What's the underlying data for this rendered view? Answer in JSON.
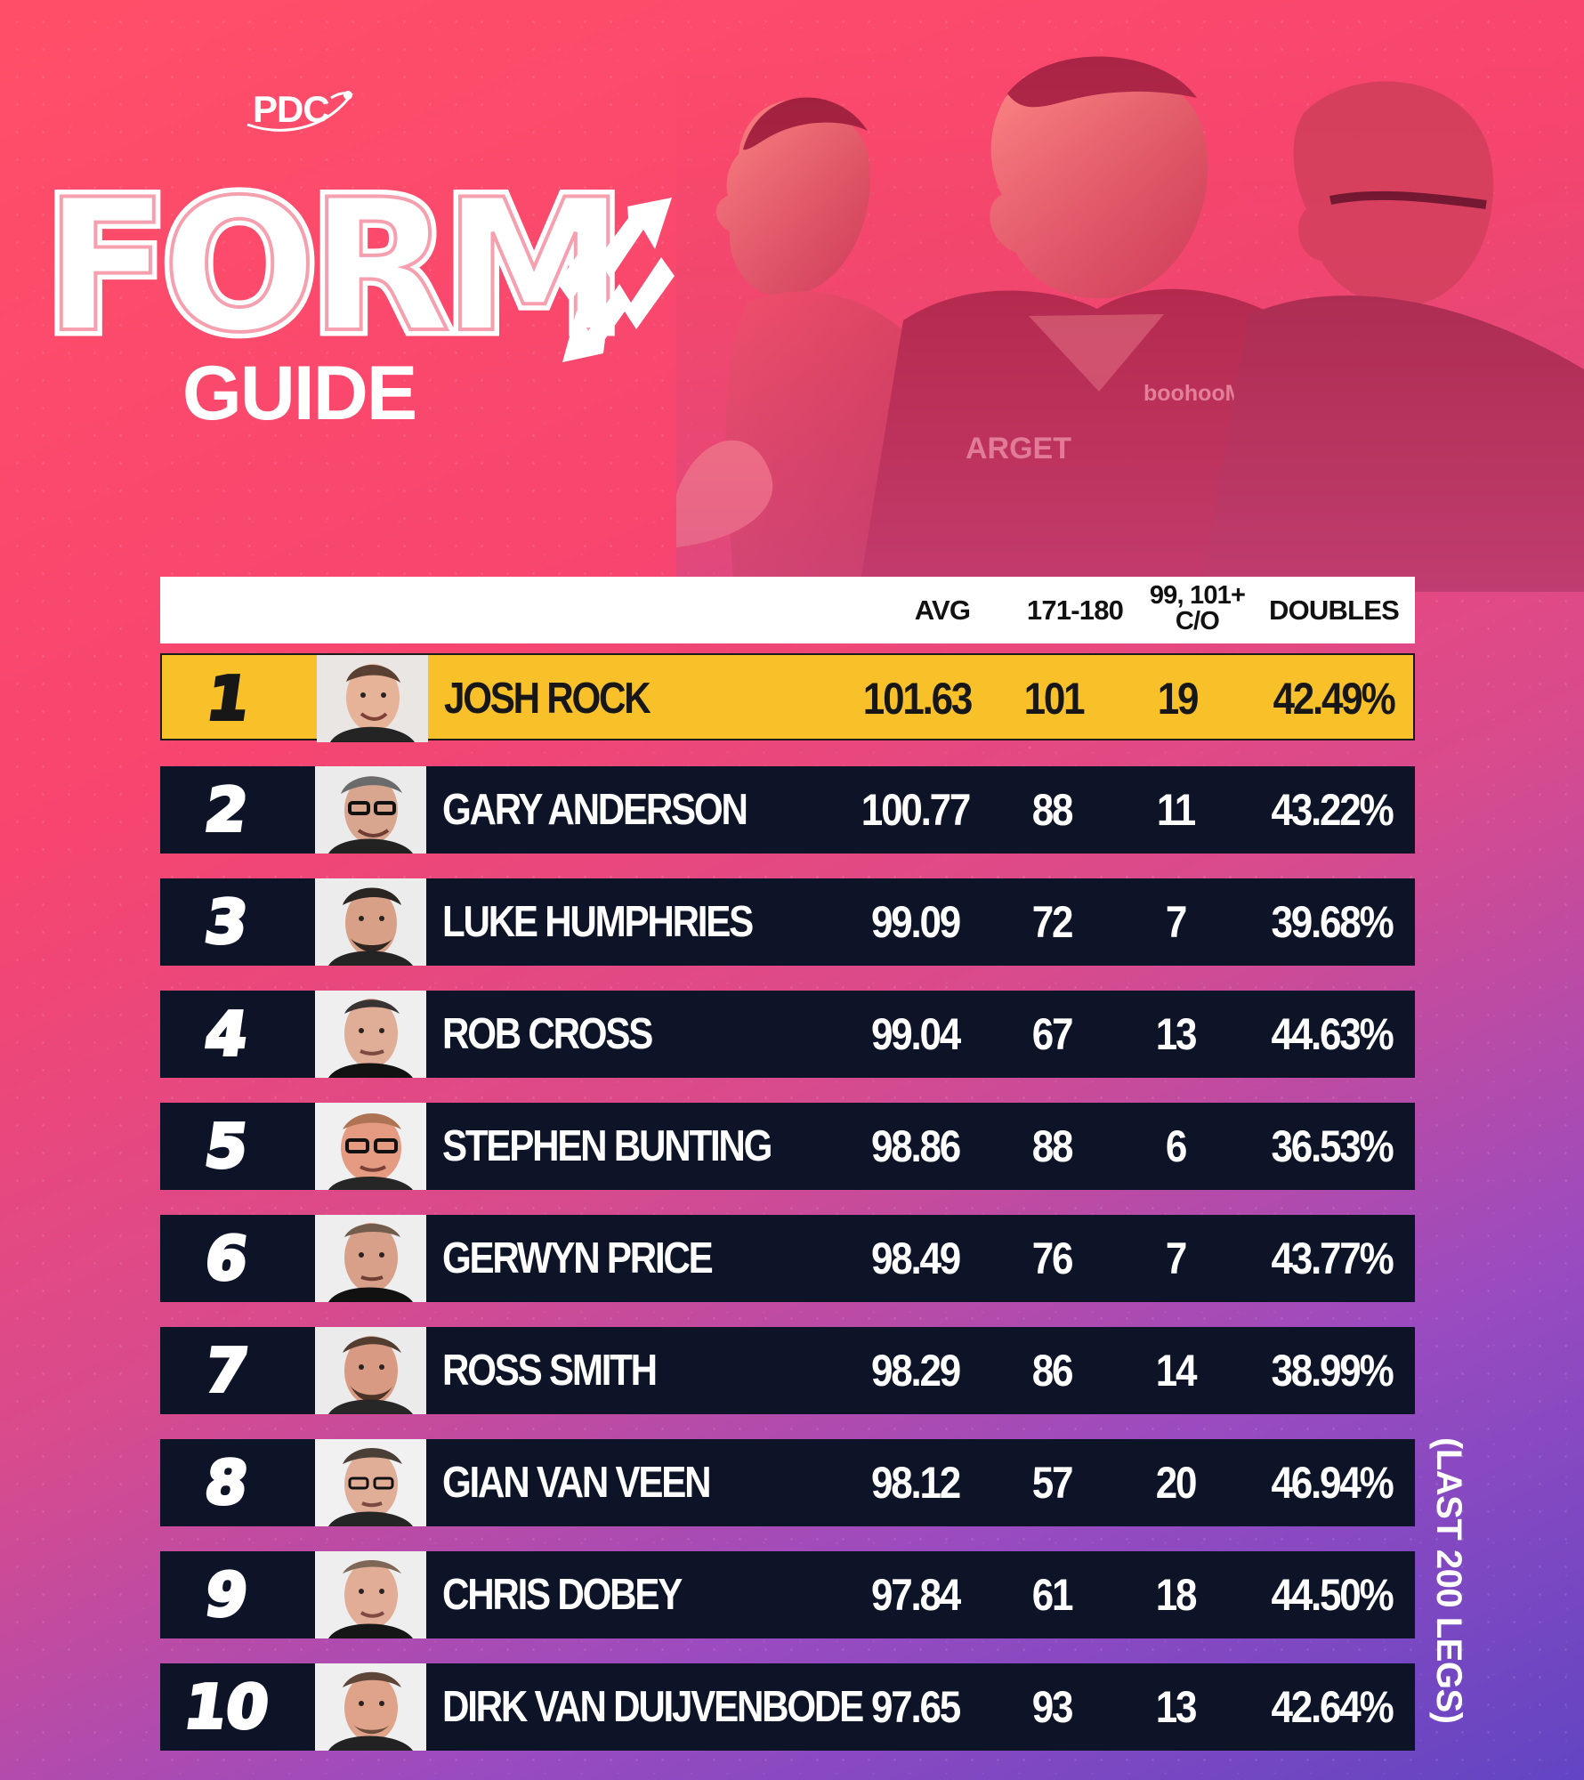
{
  "branding": {
    "logo_text": "PDC",
    "title_main": "FORM",
    "title_sub": "GUIDE",
    "accent_color": "#f8c12a",
    "row_color": "#0d1427"
  },
  "table": {
    "headers": {
      "avg": "AVG",
      "scores": "171-180",
      "checkouts_line_1": "99, 101+",
      "checkouts_line_2": "C/O",
      "doubles": "DOUBLES"
    },
    "rows": [
      {
        "rank": "1",
        "name": "JOSH ROCK",
        "avg": "101.63",
        "scores": "101",
        "checkouts": "19",
        "doubles": "42.49%",
        "highlighted": true
      },
      {
        "rank": "2",
        "name": "GARY ANDERSON",
        "avg": "100.77",
        "scores": "88",
        "checkouts": "11",
        "doubles": "43.22%",
        "highlighted": false
      },
      {
        "rank": "3",
        "name": "LUKE HUMPHRIES",
        "avg": "99.09",
        "scores": "72",
        "checkouts": "7",
        "doubles": "39.68%",
        "highlighted": false
      },
      {
        "rank": "4",
        "name": "ROB CROSS",
        "avg": "99.04",
        "scores": "67",
        "checkouts": "13",
        "doubles": "44.63%",
        "highlighted": false
      },
      {
        "rank": "5",
        "name": "STEPHEN BUNTING",
        "avg": "98.86",
        "scores": "88",
        "checkouts": "6",
        "doubles": "36.53%",
        "highlighted": false
      },
      {
        "rank": "6",
        "name": "GERWYN PRICE",
        "avg": "98.49",
        "scores": "76",
        "checkouts": "7",
        "doubles": "43.77%",
        "highlighted": false
      },
      {
        "rank": "7",
        "name": "ROSS SMITH",
        "avg": "98.29",
        "scores": "86",
        "checkouts": "14",
        "doubles": "38.99%",
        "highlighted": false
      },
      {
        "rank": "8",
        "name": "GIAN VAN VEEN",
        "avg": "98.12",
        "scores": "57",
        "checkouts": "20",
        "doubles": "46.94%",
        "highlighted": false
      },
      {
        "rank": "9",
        "name": "CHRIS DOBEY",
        "avg": "97.84",
        "scores": "61",
        "checkouts": "18",
        "doubles": "44.50%",
        "highlighted": false
      },
      {
        "rank": "10",
        "name": "DIRK VAN DUIJVENBODE",
        "avg": "97.65",
        "scores": "93",
        "checkouts": "13",
        "doubles": "42.64%",
        "highlighted": false
      }
    ]
  },
  "footnote": "(LAST 200 LEGS)"
}
